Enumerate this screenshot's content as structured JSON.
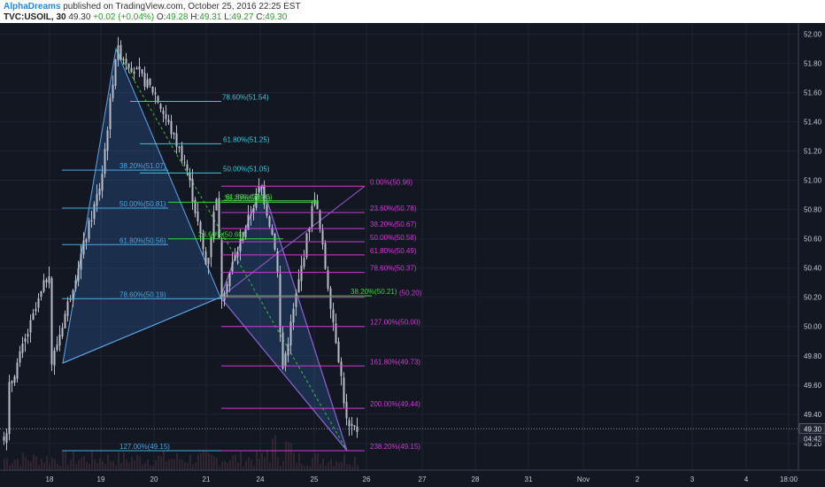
{
  "header": {
    "author": "AlphaDreams",
    "published_text": "published on TradingView.com, October 25, 2016 22:25 EST",
    "symbol": "TVC:USOIL, 30",
    "last": "49.30",
    "change": "+0.02 (+0.04%)",
    "open_label": "O:",
    "open": "49.28",
    "high_label": "H:",
    "high": "49.31",
    "low_label": "L:",
    "low": "49.27",
    "close_label": "C:",
    "close": "49.30"
  },
  "colors": {
    "background": "#131722",
    "grid": "#1f2433",
    "candle": "#b8bec9",
    "blue_fib": "#4aa8e0",
    "cyan_fib": "#3ec6d6",
    "magenta_fib": "#d23ad6",
    "green_fib": "#3fd13f",
    "pattern_fill": "#2a5c9a",
    "pattern_line": "#5fa8e8",
    "purple_pattern_line": "#9c59d6",
    "green_dash": "#3fbf3f",
    "axis_text": "#c5cad6"
  },
  "chart_data": {
    "type": "candlestick",
    "x_ticks": [
      "18",
      "19",
      "20",
      "21",
      "24",
      "25",
      "26",
      "27",
      "28",
      "31",
      "Nov",
      "2",
      "3",
      "4",
      "18:00"
    ],
    "y_ticks": [
      "52.00",
      "51.80",
      "51.60",
      "51.40",
      "51.20",
      "51.00",
      "50.80",
      "50.60",
      "50.40",
      "50.20",
      "50.00",
      "49.80",
      "49.60",
      "49.40",
      "49.20"
    ],
    "ylim": [
      49.12,
      52.04
    ],
    "last_price_label": "49.30",
    "countdown_label": "04:42",
    "price_path_keypoints": [
      {
        "x": "17",
        "y": 49.55
      },
      {
        "x": "18",
        "y": 50.4
      },
      {
        "x": "18",
        "y": 49.75
      },
      {
        "x": "19",
        "y": 51.0
      },
      {
        "x": "19",
        "y": 51.9
      },
      {
        "x": "20",
        "y": 51.6
      },
      {
        "x": "20",
        "y": 51.1
      },
      {
        "x": "21",
        "y": 50.4
      },
      {
        "x": "21",
        "y": 50.95
      },
      {
        "x": "21",
        "y": 50.2
      },
      {
        "x": "24",
        "y": 50.97
      },
      {
        "x": "24",
        "y": 49.68
      },
      {
        "x": "24",
        "y": 50.5
      },
      {
        "x": "25",
        "y": 50.9
      },
      {
        "x": "25",
        "y": 49.75
      },
      {
        "x": "26",
        "y": 49.25
      },
      {
        "x": "26",
        "y": 49.3
      }
    ],
    "fib_levels": [
      {
        "label": "78.60%(51.54)",
        "price": 51.54,
        "color": "cyan"
      },
      {
        "label": "61.80%(51.25)",
        "price": 51.25,
        "color": "cyan"
      },
      {
        "label": "50.00%(51.05)",
        "price": 51.05,
        "color": "cyan"
      },
      {
        "label": "38.20%(51.07)",
        "price": 51.07,
        "color": "blue"
      },
      {
        "label": "50.00%(50.81)",
        "price": 50.81,
        "color": "blue"
      },
      {
        "label": "61.80%(50.56)",
        "price": 50.56,
        "color": "blue"
      },
      {
        "label": "78.60%(50.19)",
        "price": 50.19,
        "color": "blue"
      },
      {
        "label": "127.00%(49.15)",
        "price": 49.15,
        "color": "blue"
      },
      {
        "label": "38.20%(50.85)",
        "price": 50.85,
        "color": "green"
      },
      {
        "label": "61.80%(50.86)",
        "price": 50.86,
        "color": "green"
      },
      {
        "label": "23.60%(50.60)",
        "price": 50.6,
        "color": "green"
      },
      {
        "label": "38.20%(50.21)",
        "price": 50.21,
        "color": "green"
      },
      {
        "label": "0.00%(50.96)",
        "price": 50.96,
        "color": "magenta"
      },
      {
        "label": "23.60%(50.78)",
        "price": 50.78,
        "color": "magenta"
      },
      {
        "label": "38.20%(50.67)",
        "price": 50.67,
        "color": "magenta"
      },
      {
        "label": "50.00%(50.58)",
        "price": 50.58,
        "color": "magenta"
      },
      {
        "label": "61.80%(50.49)",
        "price": 50.49,
        "color": "magenta"
      },
      {
        "label": "78.60%(50.37)",
        "price": 50.37,
        "color": "magenta"
      },
      {
        "label": "(50.20)",
        "price": 50.2,
        "color": "magenta"
      },
      {
        "label": "127.00%(50.00)",
        "price": 50.0,
        "color": "magenta"
      },
      {
        "label": "161.80%(49.73)",
        "price": 49.73,
        "color": "magenta"
      },
      {
        "label": "200.00%(49.44)",
        "price": 49.44,
        "color": "magenta"
      },
      {
        "label": "238.20%(49.15)",
        "price": 49.15,
        "color": "magenta"
      }
    ]
  }
}
